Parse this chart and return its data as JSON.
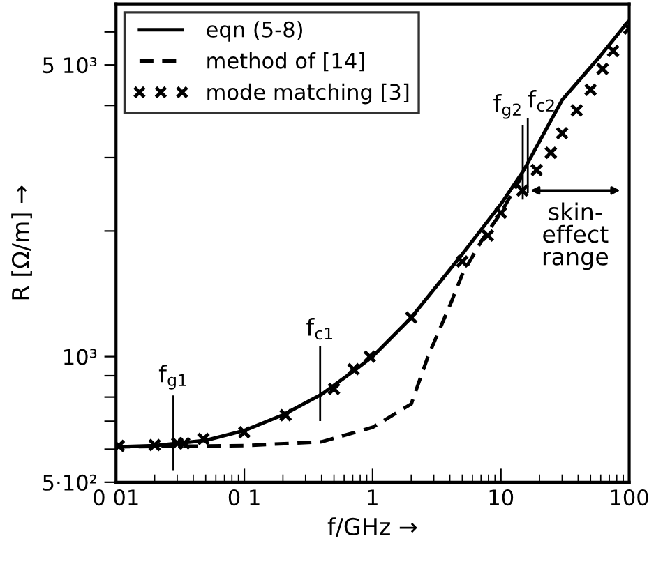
{
  "chart_data": {
    "type": "line",
    "xlabel": "f/GHz →",
    "ylabel": "R [Ω/m] →",
    "log": "xy",
    "xlim": [
      0.01,
      100
    ],
    "ylim": [
      500,
      7000
    ],
    "xticks": [
      {
        "value": 0.01,
        "label": "0 01"
      },
      {
        "value": 0.1,
        "label": "0 1"
      },
      1,
      10,
      100
    ],
    "yticks": [
      {
        "value": 500,
        "label": "5·10²"
      },
      {
        "value": 600,
        "label": null
      },
      {
        "value": 700,
        "label": null
      },
      {
        "value": 800,
        "label": null
      },
      {
        "value": 900,
        "label": null
      },
      {
        "value": 1000,
        "label": "10³"
      },
      {
        "value": 2000,
        "label": null
      },
      {
        "value": 3000,
        "label": null
      },
      {
        "value": 4000,
        "label": null
      },
      {
        "value": 5000,
        "label": "5 10³"
      },
      {
        "value": 6000,
        "label": null
      }
    ],
    "legend": "top left",
    "grid": false,
    "series": [
      {
        "name": "eqn (5-8)",
        "line_style": "solid",
        "color": "#000000",
        "x": [
          0.01,
          0.02,
          0.05,
          0.1,
          0.2,
          0.4,
          0.7,
          1,
          2,
          5,
          10,
          15,
          30,
          60,
          100
        ],
        "values": [
          608,
          612,
          630,
          665,
          725,
          812,
          920,
          1000,
          1240,
          1760,
          2320,
          2790,
          4120,
          5270,
          6400
        ]
      },
      {
        "name": "method of [14]",
        "line_style": "dashed",
        "color": "#000000",
        "x": [
          0.01,
          0.1,
          0.4,
          1,
          2,
          2.7,
          4.1,
          5,
          7.1,
          10,
          15
        ],
        "values": [
          608,
          612,
          625,
          677,
          770,
          1000,
          1350,
          1575,
          1900,
          2210,
          2750
        ]
      },
      {
        "name": "mode matching [3]",
        "type": "scatter",
        "marker": "cross",
        "color": "#000000",
        "x": [
          0.0105,
          0.02,
          0.03,
          0.034,
          0.048,
          0.1,
          0.21,
          0.5,
          0.71,
          0.95,
          2,
          5,
          7.9,
          10,
          14.7,
          19,
          24.5,
          30,
          39,
          50,
          62,
          75,
          100
        ],
        "values": [
          611,
          614,
          620,
          620,
          635,
          659,
          724,
          837,
          933,
          1000,
          1240,
          1690,
          1950,
          2210,
          2500,
          2800,
          3080,
          3430,
          3890,
          4360,
          4890,
          5400,
          6110
        ]
      }
    ],
    "annotations": [
      {
        "text": "f$_{g1}$",
        "x": 0.028,
        "y": 618
      },
      {
        "text": "f$_{c1}$",
        "x": 0.39,
        "y": 810
      },
      {
        "text": "f$_{g2}$",
        "x": 14.8,
        "y": 2750
      },
      {
        "text": "f$_{c2}$",
        "x": 16.2,
        "y": 2850
      },
      "skin-\neffect\nrange"
    ]
  }
}
